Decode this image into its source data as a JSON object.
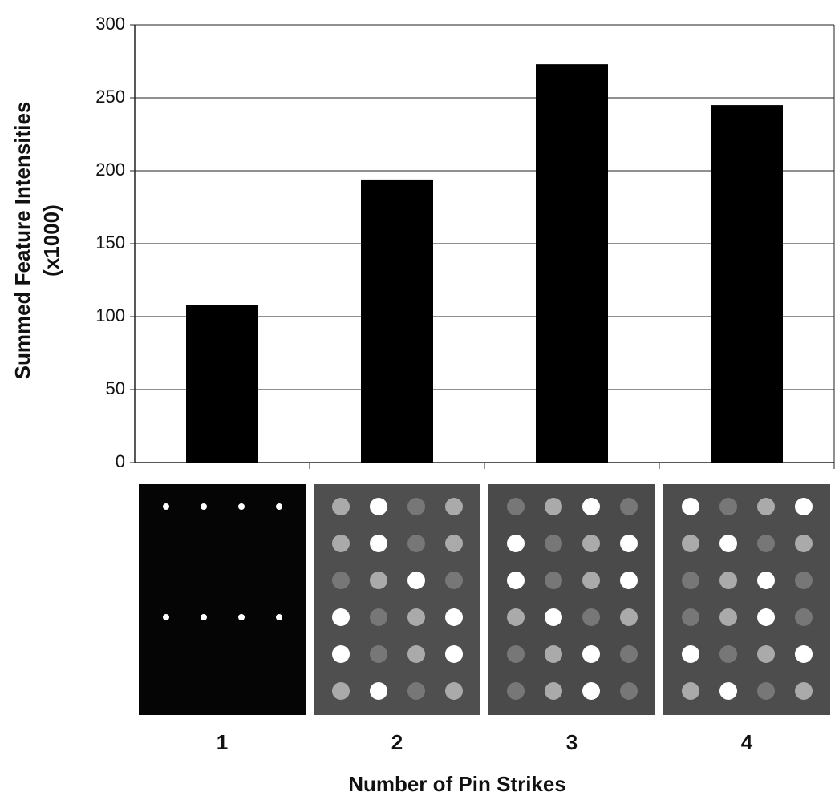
{
  "chart_data": {
    "type": "bar",
    "ylabel": [
      "Summed Feature Intensities",
      "(x1000)"
    ],
    "xlabel": "Number of Pin Strikes",
    "categories": [
      "1",
      "2",
      "3",
      "4"
    ],
    "values": [
      108,
      194,
      273,
      245
    ],
    "color": "#000000",
    "ylim": [
      0,
      300
    ],
    "yticks": [
      0,
      50,
      100,
      150,
      200,
      250,
      300
    ],
    "grid": true
  }
}
